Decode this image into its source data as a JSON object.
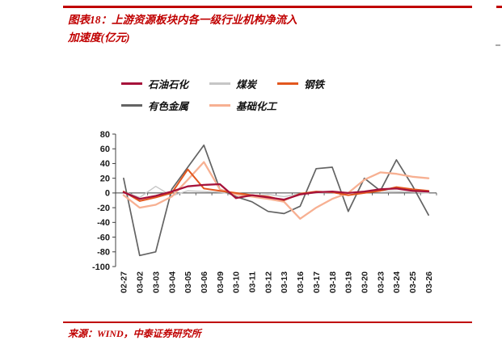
{
  "page": {
    "title_line1": "图表18：上游资源板块内各一级行业机构净流入",
    "title_line2": "加速度(亿元)",
    "source": "来源：WIND，中泰证券研究所",
    "accent_red": "#c00000"
  },
  "chart_data": {
    "type": "line",
    "title": "上游资源板块内各一级行业机构净流入加速度(亿元)",
    "xlabel": "",
    "ylabel": "",
    "ylim": [
      -100,
      80
    ],
    "ytick_step": 20,
    "grid": false,
    "legend_position": "top",
    "categories": [
      "02-27",
      "03-02",
      "03-03",
      "03-04",
      "03-05",
      "03-06",
      "03-09",
      "03-10",
      "03-11",
      "03-12",
      "03-13",
      "03-16",
      "03-17",
      "03-18",
      "03-19",
      "03-20",
      "03-23",
      "03-24",
      "03-25",
      "03-26"
    ],
    "series": [
      {
        "name": "石油石化",
        "color": "#a6123a",
        "values": [
          1,
          -8,
          -4,
          2,
          9,
          11,
          12,
          -7,
          -3,
          -6,
          -9,
          -2,
          1,
          2,
          0,
          2,
          5,
          6,
          3,
          2
        ]
      },
      {
        "name": "煤炭",
        "color": "#c6c6c6",
        "values": [
          2,
          -6,
          9,
          -4,
          3,
          2,
          1,
          -2,
          -4,
          -2,
          -5,
          -1,
          0,
          1,
          0,
          1,
          3,
          2,
          1,
          0
        ]
      },
      {
        "name": "钢铁",
        "color": "#e2571e",
        "values": [
          2,
          -11,
          -6,
          0,
          32,
          6,
          3,
          0,
          -3,
          -5,
          -10,
          -1,
          2,
          1,
          -3,
          0,
          3,
          8,
          5,
          3
        ]
      },
      {
        "name": "有色金属",
        "color": "#636363",
        "values": [
          20,
          -85,
          -80,
          5,
          35,
          65,
          5,
          -5,
          -12,
          -25,
          -28,
          -18,
          33,
          35,
          -25,
          20,
          3,
          45,
          10,
          -30
        ]
      },
      {
        "name": "基础化工",
        "color": "#f7b092",
        "values": [
          -3,
          -20,
          -16,
          -5,
          18,
          42,
          5,
          -2,
          -5,
          -8,
          -12,
          -35,
          -20,
          -8,
          0,
          18,
          28,
          26,
          22,
          20
        ]
      }
    ],
    "legend_rows": [
      [
        0,
        1,
        2
      ],
      [
        3,
        4
      ]
    ]
  }
}
